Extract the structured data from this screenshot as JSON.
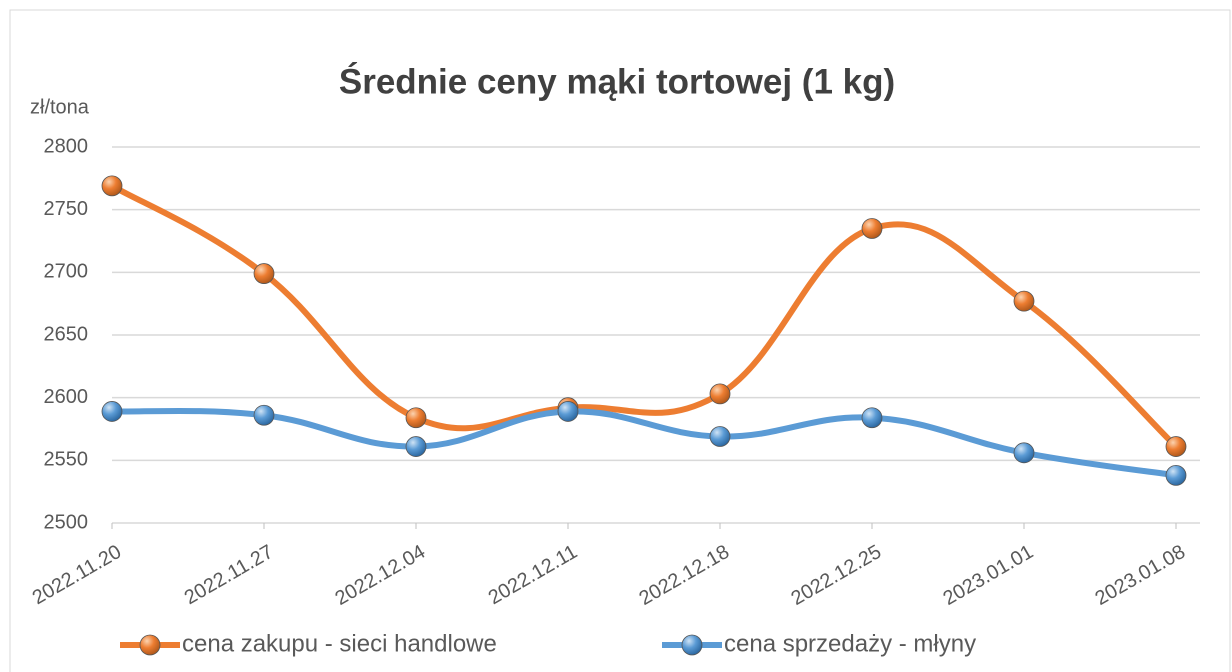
{
  "chart_data": {
    "type": "line",
    "title": "Średnie ceny mąki tortowej (1 kg)",
    "y_label": "zł/tona",
    "categories": [
      "2022.11.20",
      "2022.11.27",
      "2022.12.04",
      "2022.12.11",
      "2022.12.18",
      "2022.12.25",
      "2023.01.01",
      "2023.01.08"
    ],
    "series": [
      {
        "name": "cena zakupu - sieci handlowe",
        "color": "#ed7d31",
        "values": [
          2769,
          2699,
          2584,
          2592,
          2603,
          2735,
          2677,
          2561
        ]
      },
      {
        "name": "cena sprzedaży - młyny",
        "color": "#5b9bd5",
        "values": [
          2589,
          2586,
          2561,
          2589,
          2569,
          2584,
          2556,
          2538
        ]
      }
    ],
    "ylim": [
      2500,
      2800
    ],
    "yticks": [
      2500,
      2550,
      2600,
      2650,
      2700,
      2750,
      2800
    ],
    "grid": true,
    "smooth": true,
    "legend": "bottom"
  }
}
